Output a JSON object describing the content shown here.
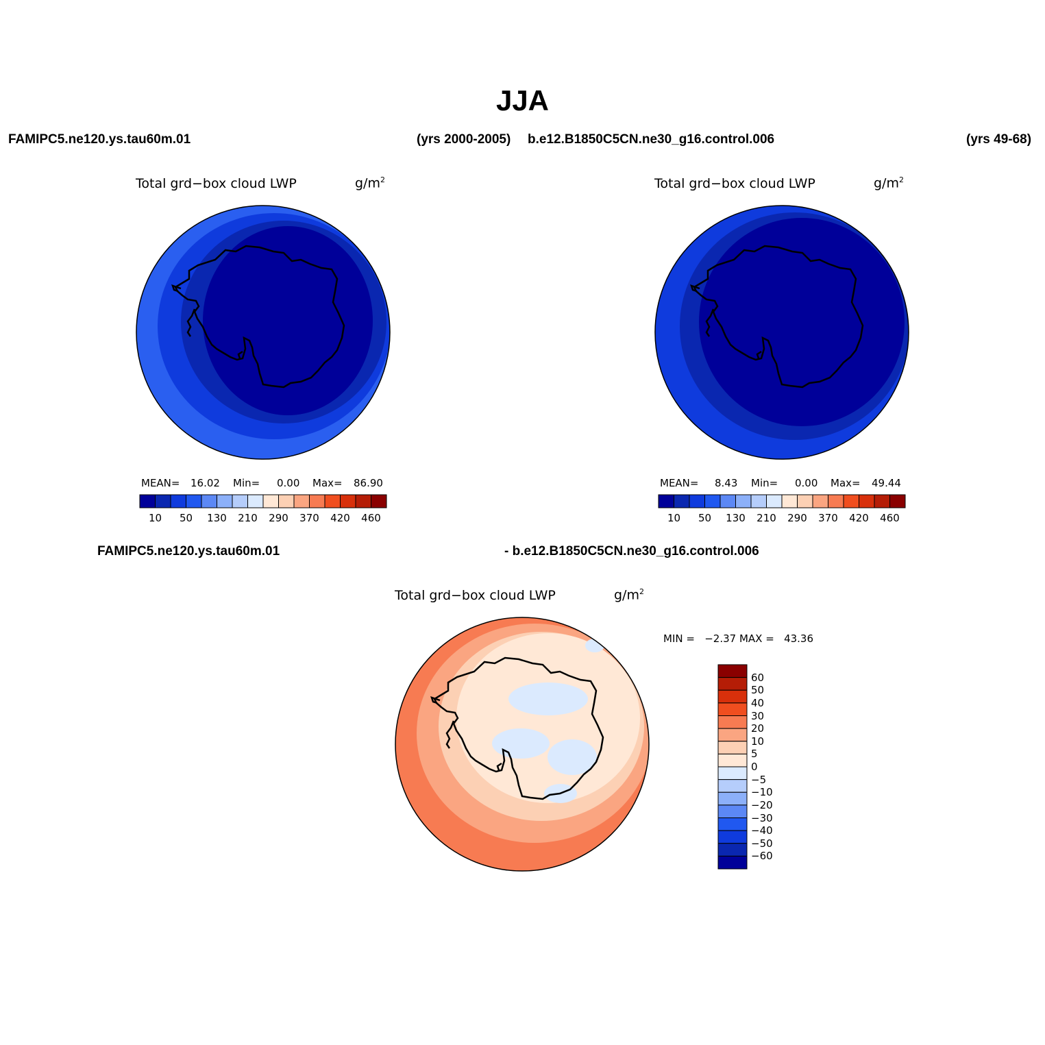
{
  "title": "JJA",
  "header": {
    "case1": "FAMIPC5.ne120.ys.tau60m.01",
    "case1_years": "(yrs 2000-2005)",
    "case2": "b.e12.B1850C5CN.ne30_g16.control.006",
    "case2_years": "(yrs 49-68)",
    "diff_case1": "FAMIPC5.ne120.ys.tau60m.01",
    "diff_case2": "- b.e12.B1850C5CN.ne30_g16.control.006"
  },
  "panels": [
    {
      "variable": "Total grd−box cloud LWP",
      "units_base": "g/m",
      "units_exp": "2",
      "mean_label": "MEAN=",
      "mean": "16.02",
      "min_label": "Min=",
      "min": "0.00",
      "max_label": "Max=",
      "max": "86.90"
    },
    {
      "variable": "Total grd−box cloud LWP",
      "units_base": "g/m",
      "units_exp": "2",
      "mean_label": "MEAN=",
      "mean": "8.43",
      "min_label": "Min=",
      "min": "0.00",
      "max_label": "Max=",
      "max": "49.44"
    }
  ],
  "diff_panel": {
    "variable": "Total grd−box cloud LWP",
    "units_base": "g/m",
    "units_exp": "2",
    "minmax": "MIN =   −2.37 MAX =   43.36"
  },
  "colorbar_h": {
    "colors": [
      "#000099",
      "#0a27b0",
      "#0f3bdd",
      "#2058f0",
      "#5c88f5",
      "#8cb0f9",
      "#b5cdfb",
      "#dbeafe",
      "#ffe8d6",
      "#fcd0b4",
      "#faa581",
      "#f77b52",
      "#f04e1f",
      "#d8300b",
      "#b51d06",
      "#8a0000"
    ],
    "labels": [
      "10",
      "50",
      "130",
      "210",
      "290",
      "370",
      "420",
      "460"
    ]
  },
  "colorbar_v": {
    "colors": [
      "#8a0000",
      "#b51d06",
      "#d8300b",
      "#f04e1f",
      "#f77b52",
      "#faa581",
      "#fcd0b4",
      "#ffe8d6",
      "#dbeafe",
      "#b5cdfb",
      "#8cb0f9",
      "#5c88f5",
      "#2058f0",
      "#0f3bdd",
      "#0a27b0",
      "#000099"
    ],
    "labels": [
      "60",
      "50",
      "40",
      "30",
      "20",
      "10",
      "5",
      "0",
      "−5",
      "−10",
      "−20",
      "−30",
      "−40",
      "−50",
      "−60"
    ]
  },
  "map_fields": {
    "panel1": {
      "ocean_outer": "#2a5ff0",
      "ring_mid": "#0f3bdd",
      "ring_inner": "#0a27b0",
      "center": "#000099"
    },
    "panel2": {
      "ocean_outer": "#0f3bdd",
      "ring_inner": "#0a27b0",
      "center": "#000099"
    },
    "diff": {
      "outer": "#f77b52",
      "mid": "#faa581",
      "inner": "#fcd0b4",
      "center": "#ffe8d6",
      "negative": "#dbeafe"
    }
  }
}
